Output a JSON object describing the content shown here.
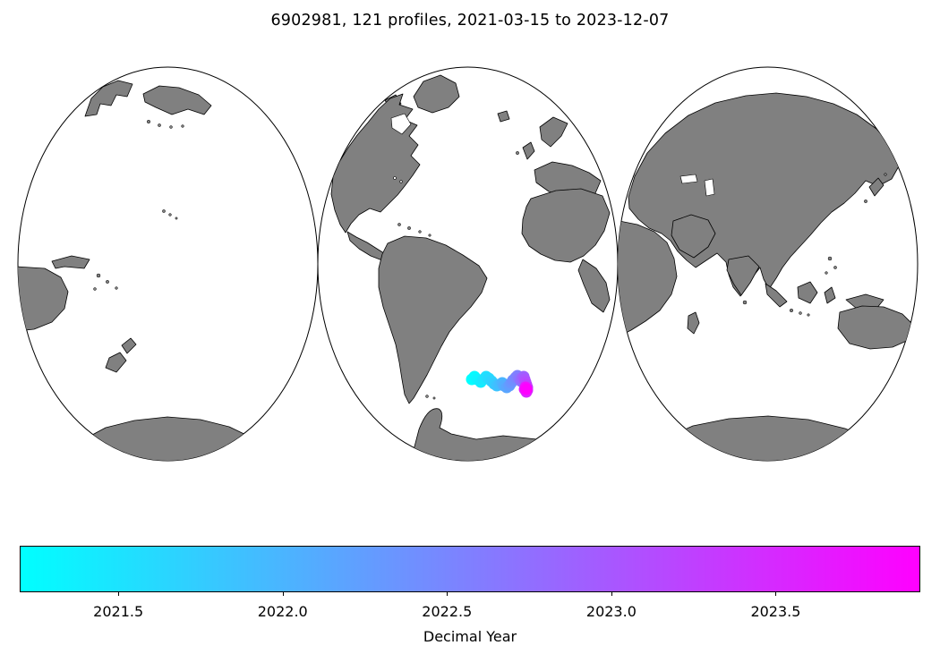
{
  "title": "6902981, 121 profiles, 2021-03-15 to 2023-12-07",
  "colorbar": {
    "label": "Decimal Year",
    "tick_labels": [
      "2021.5",
      "2022.0",
      "2022.5",
      "2023.0",
      "2023.5"
    ],
    "tick_values": [
      2021.5,
      2022.0,
      2022.5,
      2023.0,
      2023.5
    ],
    "vmin": 2021.2,
    "vmax": 2023.94,
    "colormap": "cool",
    "color_start": "#00ffff",
    "color_end": "#ff00ff"
  },
  "map": {
    "projection": "interrupted-mollweide-3-lobes",
    "land_color": "#808080",
    "ocean_color": "#ffffff",
    "coastline_color": "#000000"
  },
  "chart_data": {
    "type": "scatter",
    "title": "6902981, 121 profiles, 2021-03-15 to 2023-12-07",
    "float_id": "6902981",
    "n_profiles": 121,
    "date_start": "2021-03-15",
    "date_end": "2023-12-07",
    "color_variable": "Decimal Year",
    "color_range": [
      2021.2,
      2023.94
    ],
    "colorbar_ticks": [
      2021.5,
      2022.0,
      2022.5,
      2023.0,
      2023.5
    ],
    "point_format": "x_px,y_px,t_normalized",
    "point_radius_px": 6.5,
    "trajectory": [
      [
        527,
        374,
        0.0
      ],
      [
        530,
        371,
        0.02
      ],
      [
        533,
        374,
        0.045
      ],
      [
        537,
        377,
        0.07
      ],
      [
        540,
        374,
        0.095
      ],
      [
        543,
        371,
        0.12
      ],
      [
        546,
        373,
        0.145
      ],
      [
        549,
        376,
        0.17
      ],
      [
        552,
        379,
        0.2
      ],
      [
        555,
        381,
        0.23
      ],
      [
        558,
        380,
        0.26
      ],
      [
        561,
        378,
        0.29
      ],
      [
        563,
        381,
        0.32
      ],
      [
        566,
        383,
        0.35
      ],
      [
        569,
        381,
        0.38
      ],
      [
        571,
        378,
        0.41
      ],
      [
        573,
        375,
        0.44
      ],
      [
        576,
        372,
        0.47
      ],
      [
        578,
        370,
        0.5
      ],
      [
        580,
        373,
        0.53
      ],
      [
        582,
        376,
        0.56
      ],
      [
        583,
        373,
        0.59
      ],
      [
        585,
        371,
        0.62
      ],
      [
        586,
        374,
        0.66
      ],
      [
        587,
        377,
        0.7
      ],
      [
        588,
        380,
        0.74
      ],
      [
        589,
        383,
        0.78
      ],
      [
        589,
        386,
        0.82
      ],
      [
        588,
        388,
        0.86
      ],
      [
        586,
        385,
        0.9
      ],
      [
        587,
        383,
        0.94
      ],
      [
        588,
        385,
        1.0
      ]
    ]
  }
}
